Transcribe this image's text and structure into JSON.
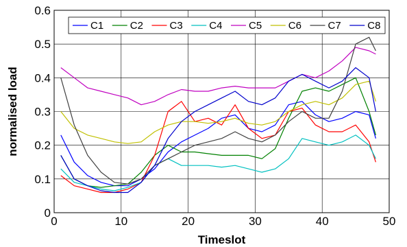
{
  "chart_data": {
    "type": "line",
    "title": "",
    "xlabel": "Timeslot",
    "ylabel": "normalised load",
    "xlim": [
      0,
      50
    ],
    "ylim": [
      0,
      0.6
    ],
    "xticks": [
      "0",
      "10",
      "20",
      "30",
      "40",
      "50"
    ],
    "yticks": [
      "0",
      "0.1",
      "0.2",
      "0.3",
      "0.4",
      "0.5",
      "0.6"
    ],
    "grid": true,
    "legend_position": "top",
    "x": [
      1,
      3,
      5,
      7,
      9,
      11,
      13,
      15,
      17,
      19,
      21,
      23,
      25,
      27,
      29,
      31,
      33,
      35,
      37,
      39,
      41,
      43,
      45,
      47,
      48
    ],
    "series": [
      {
        "name": "C1",
        "color": "#0000ff",
        "values": [
          0.23,
          0.15,
          0.11,
          0.09,
          0.08,
          0.08,
          0.1,
          0.13,
          0.18,
          0.21,
          0.23,
          0.25,
          0.28,
          0.29,
          0.25,
          0.24,
          0.26,
          0.32,
          0.33,
          0.29,
          0.27,
          0.28,
          0.3,
          0.29,
          0.22
        ]
      },
      {
        "name": "C2",
        "color": "#008000",
        "values": [
          0.17,
          0.1,
          0.08,
          0.075,
          0.08,
          0.085,
          0.12,
          0.17,
          0.2,
          0.18,
          0.18,
          0.175,
          0.17,
          0.17,
          0.17,
          0.16,
          0.19,
          0.28,
          0.36,
          0.37,
          0.36,
          0.38,
          0.4,
          0.3,
          0.23
        ]
      },
      {
        "name": "C3",
        "color": "#ff0000",
        "values": [
          0.11,
          0.08,
          0.07,
          0.06,
          0.06,
          0.07,
          0.09,
          0.17,
          0.3,
          0.33,
          0.27,
          0.28,
          0.26,
          0.32,
          0.25,
          0.22,
          0.23,
          0.3,
          0.31,
          0.26,
          0.24,
          0.24,
          0.26,
          0.21,
          0.15
        ]
      },
      {
        "name": "C4",
        "color": "#00c0c0",
        "values": [
          0.13,
          0.09,
          0.08,
          0.07,
          0.065,
          0.075,
          0.09,
          0.14,
          0.16,
          0.14,
          0.14,
          0.14,
          0.135,
          0.14,
          0.13,
          0.12,
          0.13,
          0.16,
          0.22,
          0.21,
          0.2,
          0.21,
          0.23,
          0.2,
          0.16
        ]
      },
      {
        "name": "C5",
        "color": "#c000c0",
        "values": [
          0.43,
          0.4,
          0.37,
          0.36,
          0.35,
          0.34,
          0.32,
          0.33,
          0.35,
          0.365,
          0.36,
          0.36,
          0.37,
          0.375,
          0.37,
          0.37,
          0.37,
          0.39,
          0.41,
          0.4,
          0.42,
          0.45,
          0.49,
          0.48,
          0.47
        ]
      },
      {
        "name": "C6",
        "color": "#c0c000",
        "values": [
          0.3,
          0.25,
          0.23,
          0.22,
          0.21,
          0.205,
          0.21,
          0.24,
          0.26,
          0.27,
          0.27,
          0.265,
          0.27,
          0.28,
          0.265,
          0.26,
          0.27,
          0.3,
          0.32,
          0.33,
          0.32,
          0.34,
          0.38,
          0.39,
          0.33
        ]
      },
      {
        "name": "C7",
        "color": "#404040",
        "values": [
          0.4,
          0.26,
          0.17,
          0.12,
          0.09,
          0.085,
          0.1,
          0.14,
          0.16,
          0.18,
          0.2,
          0.21,
          0.22,
          0.24,
          0.22,
          0.21,
          0.23,
          0.27,
          0.3,
          0.28,
          0.28,
          0.36,
          0.5,
          0.52,
          0.48
        ]
      },
      {
        "name": "C8",
        "color": "#0000cc",
        "values": [
          0.17,
          0.1,
          0.08,
          0.065,
          0.06,
          0.06,
          0.09,
          0.14,
          0.22,
          0.27,
          0.3,
          0.32,
          0.34,
          0.36,
          0.33,
          0.32,
          0.34,
          0.39,
          0.41,
          0.39,
          0.37,
          0.39,
          0.43,
          0.4,
          0.3
        ]
      }
    ]
  }
}
